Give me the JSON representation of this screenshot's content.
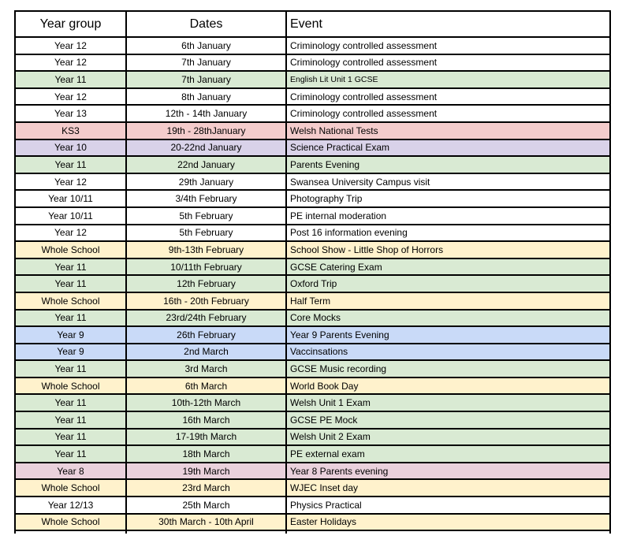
{
  "colors": {
    "white": "#ffffff",
    "green": "#d9ead3",
    "red": "#f4cccc",
    "purple": "#d9d2e9",
    "yellow": "#fff2cc",
    "blue": "#c9daf8",
    "pink": "#ead1dc",
    "border": "#000000"
  },
  "table": {
    "headers": [
      "Year group",
      "Dates",
      "Event"
    ],
    "rows": [
      {
        "year_group": "Year 12",
        "dates": "6th January",
        "event": "Criminology controlled assessment",
        "color": "white"
      },
      {
        "year_group": "Year 12",
        "dates": "7th January",
        "event": "Criminology controlled assessment",
        "color": "white"
      },
      {
        "year_group": "Year 11",
        "dates": "7th January",
        "event": "English Lit Unit 1 GCSE",
        "color": "green",
        "small_event_font": true
      },
      {
        "year_group": "Year 12",
        "dates": "8th January",
        "event": "Criminology controlled assessment",
        "color": "white"
      },
      {
        "year_group": "Year 13",
        "dates": "12th - 14th January",
        "event": "Criminology controlled assessment",
        "color": "white"
      },
      {
        "year_group": "KS3",
        "dates": "19th - 28thJanuary",
        "event": "Welsh National Tests",
        "color": "red"
      },
      {
        "year_group": "Year 10",
        "dates": "20-22nd January",
        "event": "Science Practical Exam",
        "color": "purple"
      },
      {
        "year_group": "Year 11",
        "dates": "22nd January",
        "event": "Parents Evening",
        "color": "green"
      },
      {
        "year_group": "Year 12",
        "dates": "29th January",
        "event": "Swansea University Campus visit",
        "color": "white"
      },
      {
        "year_group": "Year 10/11",
        "dates": "3/4th February",
        "event": "Photography Trip",
        "color": "white"
      },
      {
        "year_group": "Year 10/11",
        "dates": "5th February",
        "event": "PE internal moderation",
        "color": "white"
      },
      {
        "year_group": "Year 12",
        "dates": "5th February",
        "event": "Post 16 information evening",
        "color": "white"
      },
      {
        "year_group": "Whole School",
        "dates": "9th-13th February",
        "event": "School Show - Little Shop of Horrors",
        "color": "yellow"
      },
      {
        "year_group": "Year 11",
        "dates": "10/11th February",
        "event": "GCSE Catering Exam",
        "color": "green"
      },
      {
        "year_group": "Year 11",
        "dates": "12th February",
        "event": "Oxford Trip",
        "color": "green"
      },
      {
        "year_group": "Whole School",
        "dates": "16th - 20th February",
        "event": "Half Term",
        "color": "yellow"
      },
      {
        "year_group": "Year 11",
        "dates": "23rd/24th February",
        "event": "Core Mocks",
        "color": "green"
      },
      {
        "year_group": "Year 9",
        "dates": "26th February",
        "event": "Year 9 Parents Evening",
        "color": "blue"
      },
      {
        "year_group": "Year 9",
        "dates": "2nd March",
        "event": "Vaccinsations",
        "color": "blue"
      },
      {
        "year_group": "Year 11",
        "dates": "3rd March",
        "event": "GCSE Music recording",
        "color": "green"
      },
      {
        "year_group": "Whole School",
        "dates": "6th March",
        "event": "World Book Day",
        "color": "yellow"
      },
      {
        "year_group": "Year 11",
        "dates": "10th-12th March",
        "event": "Welsh Unit 1 Exam",
        "color": "green"
      },
      {
        "year_group": "Year 11",
        "dates": "16th March",
        "event": "GCSE PE Mock",
        "color": "green"
      },
      {
        "year_group": "Year 11",
        "dates": "17-19th March",
        "event": "Welsh Unit 2 Exam",
        "color": "green"
      },
      {
        "year_group": "Year 11",
        "dates": "18th March",
        "event": "PE external exam",
        "color": "green"
      },
      {
        "year_group": "Year 8",
        "dates": "19th March",
        "event": "Year 8 Parents evening",
        "color": "pink"
      },
      {
        "year_group": "Whole School",
        "dates": "23rd March",
        "event": "WJEC Inset day",
        "color": "yellow"
      },
      {
        "year_group": "Year 12/13",
        "dates": "25th March",
        "event": "Physics Practical",
        "color": "white"
      },
      {
        "year_group": "Whole School",
        "dates": "30th March - 10th April",
        "event": "Easter Holidays",
        "color": "yellow"
      }
    ]
  }
}
